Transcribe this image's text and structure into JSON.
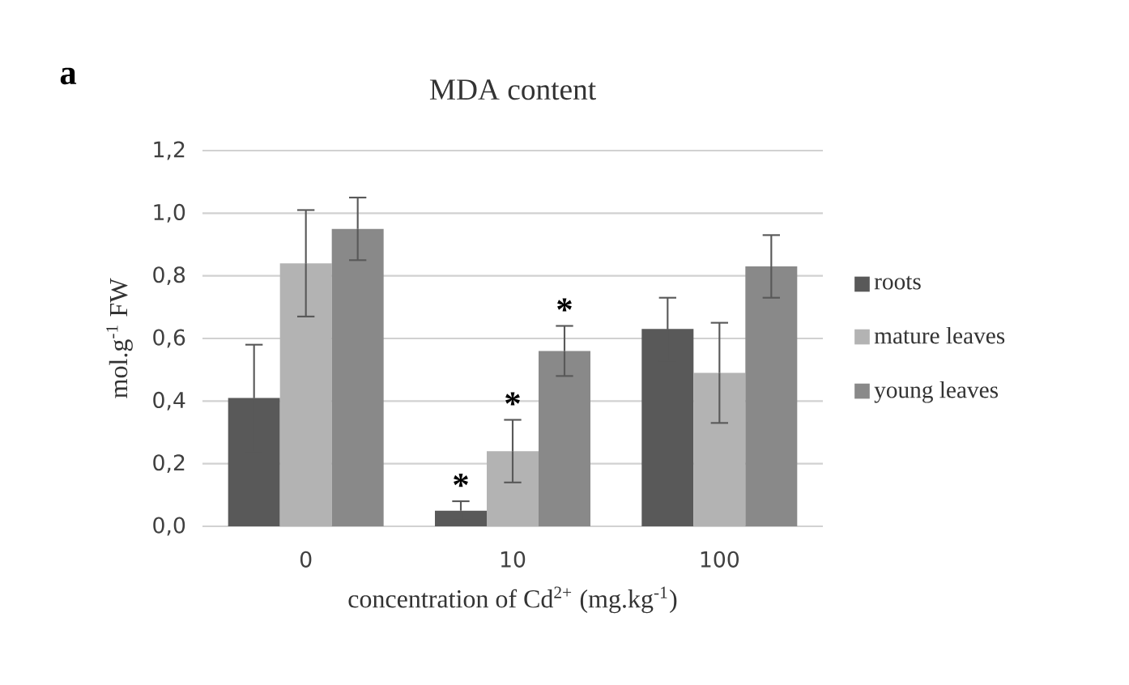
{
  "chart_data": {
    "type": "bar",
    "title": "MDA content",
    "xlabel": "concentration of Cd$^{2+}$ (mg.kg$^{-1}$)",
    "ylabel": "mol.g$^{-1}$ FW",
    "categories": [
      "0",
      "10",
      "100"
    ],
    "series": [
      {
        "name": "roots",
        "color": "#595959",
        "values": [
          0.41,
          0.05,
          0.63
        ],
        "errors": [
          0.17,
          0.03,
          0.1
        ],
        "value_labels": [
          null,
          "*",
          null
        ]
      },
      {
        "name": "mature leaves",
        "color": "#b3b3b3",
        "values": [
          0.84,
          0.24,
          0.49
        ],
        "errors": [
          0.17,
          0.1,
          0.16
        ],
        "value_labels": [
          null,
          "*",
          null
        ]
      },
      {
        "name": "young leaves",
        "color": "#898989",
        "values": [
          0.95,
          0.56,
          0.83
        ],
        "errors": [
          0.1,
          0.08,
          0.1
        ],
        "value_labels": [
          null,
          "*",
          null
        ]
      }
    ],
    "ylim": [
      0,
      1.2
    ],
    "yticks": [
      {
        "value": 0,
        "label": "0,0"
      },
      {
        "value": 0.2,
        "label": "0,2"
      },
      {
        "value": 0.4,
        "label": "0,4"
      },
      {
        "value": 0.6,
        "label": "0,6"
      },
      {
        "value": 0.8,
        "label": "0,8"
      },
      {
        "value": 1.0,
        "label": "1,0"
      },
      {
        "value": 1.2,
        "label": "1,2"
      }
    ],
    "grid": "y",
    "legend": "right",
    "annotations": [
      "a"
    ]
  }
}
